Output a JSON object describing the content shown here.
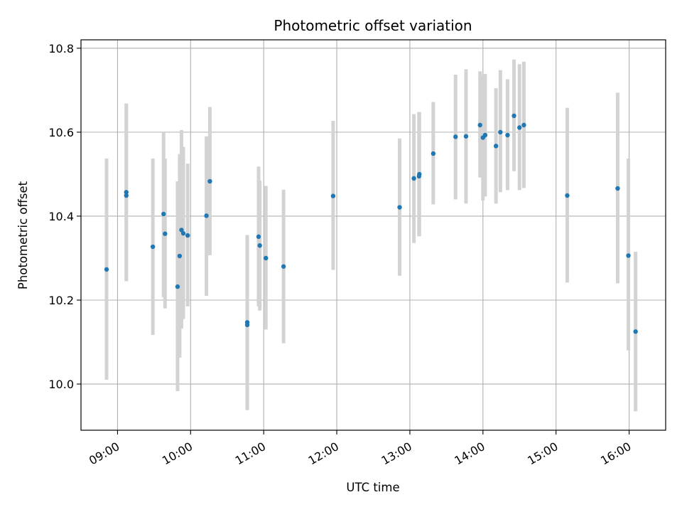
{
  "chart_data": {
    "type": "scatter",
    "title": "Photometric offset variation",
    "xlabel": "UTC time",
    "ylabel": "Photometric offset",
    "grid": true,
    "x_unit": "minutes since 00:00 UTC",
    "xlim": [
      510,
      990
    ],
    "ylim": [
      9.89,
      10.82
    ],
    "x_ticks": [
      {
        "value": 540,
        "label": "09:00"
      },
      {
        "value": 600,
        "label": "10:00"
      },
      {
        "value": 660,
        "label": "11:00"
      },
      {
        "value": 720,
        "label": "12:00"
      },
      {
        "value": 780,
        "label": "13:00"
      },
      {
        "value": 840,
        "label": "14:00"
      },
      {
        "value": 900,
        "label": "15:00"
      },
      {
        "value": 960,
        "label": "16:00"
      }
    ],
    "y_ticks": [
      {
        "value": 10.0,
        "label": "10.0"
      },
      {
        "value": 10.2,
        "label": "10.2"
      },
      {
        "value": 10.4,
        "label": "10.4"
      },
      {
        "value": 10.6,
        "label": "10.6"
      },
      {
        "value": 10.8,
        "label": "10.8"
      }
    ],
    "colors": {
      "point": "#1f77b4",
      "errorbar": "#d3d3d3",
      "grid": "#b0b0b0",
      "axes": "#000000"
    },
    "series": [
      {
        "name": "offset",
        "points": [
          {
            "x": 531.0,
            "y": 10.273,
            "lo": 10.01,
            "hi": 10.537
          },
          {
            "x": 547.2,
            "y": 10.449,
            "lo": 10.245,
            "hi": 10.668
          },
          {
            "x": 547.2,
            "y": 10.457,
            "lo": 10.245,
            "hi": 10.668
          },
          {
            "x": 569.0,
            "y": 10.327,
            "lo": 10.117,
            "hi": 10.537
          },
          {
            "x": 577.8,
            "y": 10.405,
            "lo": 10.207,
            "hi": 10.6
          },
          {
            "x": 579.0,
            "y": 10.358,
            "lo": 10.18,
            "hi": 10.537
          },
          {
            "x": 589.3,
            "y": 10.232,
            "lo": 9.983,
            "hi": 10.483
          },
          {
            "x": 591.0,
            "y": 10.305,
            "lo": 10.063,
            "hi": 10.548
          },
          {
            "x": 592.5,
            "y": 10.367,
            "lo": 10.132,
            "hi": 10.605
          },
          {
            "x": 594.0,
            "y": 10.359,
            "lo": 10.155,
            "hi": 10.565
          },
          {
            "x": 597.6,
            "y": 10.354,
            "lo": 10.185,
            "hi": 10.525
          },
          {
            "x": 613.0,
            "y": 10.401,
            "lo": 10.21,
            "hi": 10.59
          },
          {
            "x": 615.8,
            "y": 10.483,
            "lo": 10.307,
            "hi": 10.66
          },
          {
            "x": 646.5,
            "y": 10.147,
            "lo": 9.938,
            "hi": 10.355
          },
          {
            "x": 646.5,
            "y": 10.141,
            "lo": 9.938,
            "hi": 10.355
          },
          {
            "x": 655.8,
            "y": 10.351,
            "lo": 10.185,
            "hi": 10.518
          },
          {
            "x": 656.8,
            "y": 10.33,
            "lo": 10.175,
            "hi": 10.485
          },
          {
            "x": 661.8,
            "y": 10.3,
            "lo": 10.13,
            "hi": 10.472
          },
          {
            "x": 676.3,
            "y": 10.28,
            "lo": 10.097,
            "hi": 10.463
          },
          {
            "x": 717.0,
            "y": 10.448,
            "lo": 10.272,
            "hi": 10.627
          },
          {
            "x": 771.6,
            "y": 10.421,
            "lo": 10.258,
            "hi": 10.585
          },
          {
            "x": 783.3,
            "y": 10.49,
            "lo": 10.336,
            "hi": 10.643
          },
          {
            "x": 787.5,
            "y": 10.495,
            "lo": 10.352,
            "hi": 10.648
          },
          {
            "x": 787.8,
            "y": 10.5,
            "lo": 10.352,
            "hi": 10.648
          },
          {
            "x": 799.2,
            "y": 10.549,
            "lo": 10.428,
            "hi": 10.672
          },
          {
            "x": 817.5,
            "y": 10.589,
            "lo": 10.44,
            "hi": 10.737
          },
          {
            "x": 826.1,
            "y": 10.59,
            "lo": 10.43,
            "hi": 10.75
          },
          {
            "x": 837.6,
            "y": 10.617,
            "lo": 10.492,
            "hi": 10.745
          },
          {
            "x": 840.0,
            "y": 10.587,
            "lo": 10.437,
            "hi": 10.737
          },
          {
            "x": 841.8,
            "y": 10.593,
            "lo": 10.447,
            "hi": 10.739
          },
          {
            "x": 850.7,
            "y": 10.567,
            "lo": 10.43,
            "hi": 10.705
          },
          {
            "x": 854.3,
            "y": 10.6,
            "lo": 10.457,
            "hi": 10.748
          },
          {
            "x": 860.2,
            "y": 10.593,
            "lo": 10.462,
            "hi": 10.726
          },
          {
            "x": 865.5,
            "y": 10.639,
            "lo": 10.507,
            "hi": 10.773
          },
          {
            "x": 870.0,
            "y": 10.611,
            "lo": 10.462,
            "hi": 10.762
          },
          {
            "x": 873.6,
            "y": 10.617,
            "lo": 10.467,
            "hi": 10.768
          },
          {
            "x": 909.2,
            "y": 10.449,
            "lo": 10.242,
            "hi": 10.658
          },
          {
            "x": 950.6,
            "y": 10.466,
            "lo": 10.24,
            "hi": 10.694
          },
          {
            "x": 959.4,
            "y": 10.306,
            "lo": 10.08,
            "hi": 10.537
          },
          {
            "x": 965.3,
            "y": 10.125,
            "lo": 9.935,
            "hi": 10.315
          }
        ]
      }
    ]
  }
}
